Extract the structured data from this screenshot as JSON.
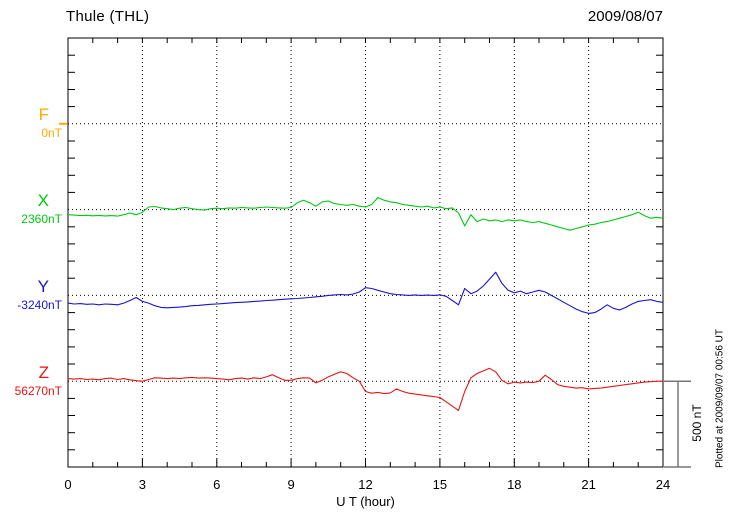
{
  "header": {
    "title": "Thule (THL)",
    "date": "2009/08/07"
  },
  "xaxis": {
    "label": "U T (hour)",
    "ticks": [
      "0",
      "3",
      "6",
      "9",
      "12",
      "15",
      "18",
      "21",
      "24"
    ]
  },
  "scale_bar": {
    "label": "500 nT"
  },
  "plot_note": "Plotted at 2009/09/07 00:56 UT",
  "chart_data": {
    "type": "line",
    "title": "Thule (THL)",
    "subtitle": "2009/08/07",
    "xlabel": "U T (hour)",
    "x_start_hour": 0,
    "x_end_hour": 24,
    "x_step_hours": 0.25,
    "x_tick_interval_hours": 1,
    "x_grid_interval_hours": 3,
    "grid": "dotted vertical every 3 h; dotted horizontal at each component baseline",
    "values_unit": "nT offset from component baseline",
    "y_minor_tick_nT": 100,
    "y_scale_bar": {
      "label": "500 nT",
      "nT": 500
    },
    "series": [
      {
        "name": "F",
        "baseline_label": "0nT",
        "baseline_nT": 0,
        "color": "#FFAA00",
        "values": []
      },
      {
        "name": "X",
        "baseline_label": "2360nT",
        "baseline_nT": 2360,
        "color": "#00C814",
        "values": [
          -30,
          -32,
          -35,
          -33,
          -36,
          -34,
          -37,
          -35,
          -38,
          -30,
          -20,
          -30,
          -15,
          15,
          18,
          10,
          5,
          0,
          8,
          12,
          5,
          0,
          -3,
          5,
          8,
          5,
          10,
          8,
          12,
          10,
          8,
          12,
          15,
          12,
          10,
          8,
          12,
          40,
          55,
          40,
          20,
          45,
          50,
          35,
          30,
          25,
          30,
          20,
          15,
          30,
          70,
          55,
          45,
          40,
          30,
          25,
          20,
          15,
          20,
          10,
          15,
          5,
          10,
          -20,
          -95,
          -30,
          -70,
          -55,
          -65,
          -60,
          -70,
          -60,
          -65,
          -60,
          -70,
          -75,
          -70,
          -80,
          -90,
          -100,
          -110,
          -120,
          -110,
          -100,
          -90,
          -85,
          -75,
          -70,
          -60,
          -50,
          -40,
          -30,
          -15,
          -35,
          -50,
          -45,
          -50
        ]
      },
      {
        "name": "Y",
        "baseline_label": "-3240nT",
        "baseline_nT": -3240,
        "color": "#1815CC",
        "values": [
          -45,
          -50,
          -48,
          -52,
          -50,
          -55,
          -50,
          -52,
          -55,
          -45,
          -30,
          -12,
          -35,
          -45,
          -60,
          -70,
          -72,
          -70,
          -68,
          -65,
          -60,
          -58,
          -55,
          -52,
          -50,
          -48,
          -45,
          -42,
          -40,
          -38,
          -35,
          -33,
          -30,
          -28,
          -25,
          -22,
          -20,
          -18,
          -15,
          -12,
          -8,
          -5,
          0,
          3,
          5,
          3,
          8,
          20,
          45,
          40,
          30,
          20,
          10,
          5,
          3,
          0,
          3,
          0,
          2,
          0,
          3,
          -5,
          -30,
          -55,
          40,
          10,
          25,
          55,
          95,
          135,
          70,
          30,
          15,
          25,
          10,
          20,
          30,
          20,
          0,
          -20,
          -40,
          -60,
          -80,
          -95,
          -105,
          -100,
          -80,
          -55,
          -75,
          -85,
          -70,
          -50,
          -35,
          -30,
          -25,
          -35,
          -40
        ]
      },
      {
        "name": "Z",
        "baseline_label": "56270nT",
        "baseline_nT": 56270,
        "color": "#E51515",
        "values": [
          15,
          12,
          15,
          10,
          12,
          8,
          15,
          18,
          10,
          15,
          8,
          3,
          0,
          10,
          20,
          18,
          15,
          18,
          15,
          20,
          22,
          18,
          20,
          18,
          15,
          12,
          8,
          15,
          18,
          12,
          20,
          15,
          25,
          38,
          20,
          5,
          5,
          15,
          20,
          18,
          -10,
          5,
          25,
          40,
          55,
          45,
          20,
          0,
          -60,
          -70,
          -65,
          -72,
          -68,
          -45,
          -60,
          -70,
          -75,
          -80,
          -85,
          -90,
          -95,
          -120,
          -145,
          -170,
          -60,
          20,
          45,
          60,
          75,
          55,
          5,
          -15,
          -5,
          -10,
          -5,
          -8,
          0,
          35,
          10,
          -20,
          -30,
          -35,
          -40,
          -38,
          -45,
          -42,
          -40,
          -35,
          -30,
          -25,
          -20,
          -15,
          -10,
          -5,
          -3,
          0,
          0
        ]
      }
    ]
  }
}
